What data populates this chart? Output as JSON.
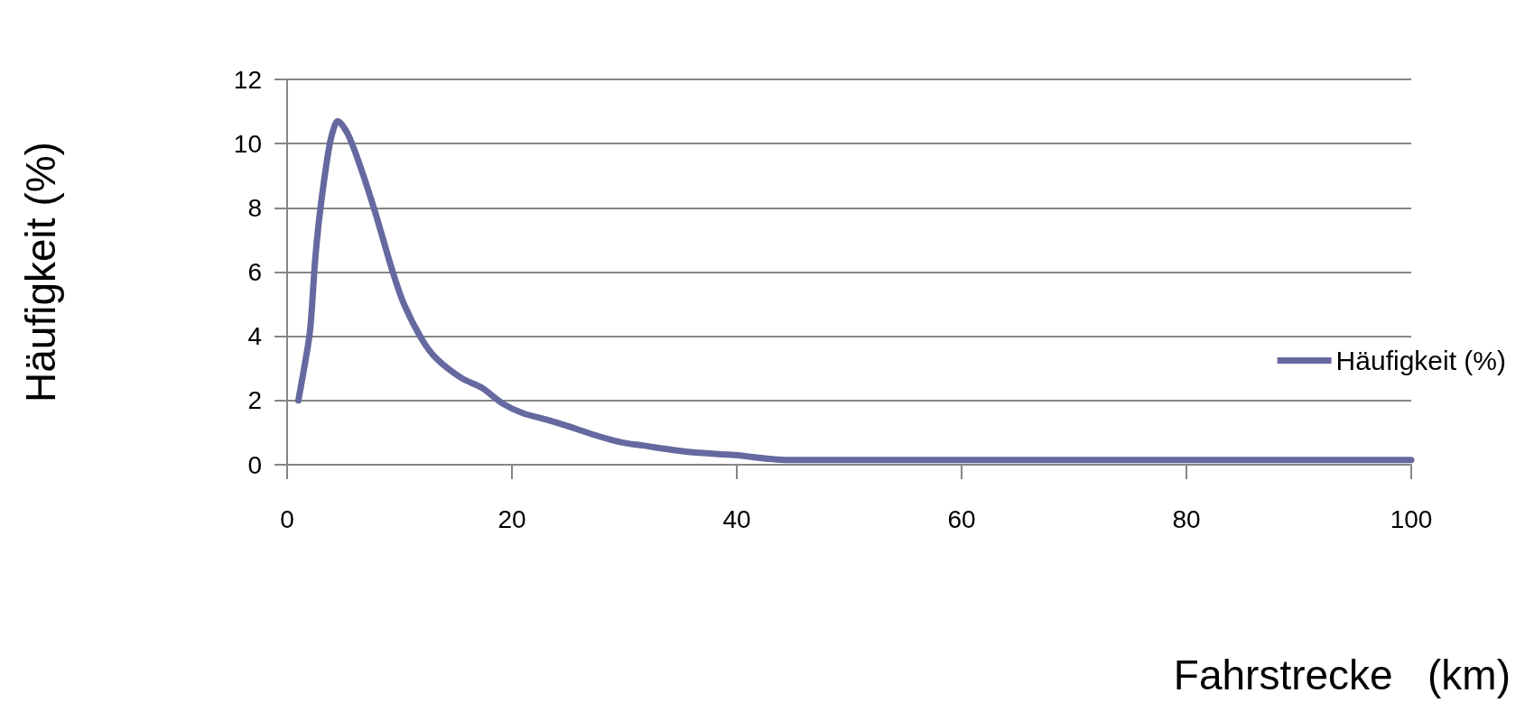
{
  "chart_data": {
    "type": "line",
    "xlabel": "Fahrstrecke   (km)",
    "ylabel": "Häufigkeit (%)",
    "series": [
      {
        "name": "Häufigkeit (%)",
        "color": "#6669a0",
        "x": [
          1,
          1.85,
          2.1,
          2.5,
          2.9,
          3.6,
          4.0,
          4.5,
          5.4,
          6.5,
          7.8,
          9.4,
          10.4,
          12.0,
          13.3,
          15.5,
          17.3,
          19.2,
          21.0,
          23.1,
          25.0,
          27.6,
          29.7,
          31.6,
          35.7,
          39.8,
          44.4,
          50,
          60,
          70,
          80,
          90,
          100
        ],
        "values": [
          2.0,
          3.7,
          4.4,
          6.4,
          7.8,
          9.6,
          10.3,
          10.7,
          10.3,
          9.3,
          7.9,
          6.0,
          5.0,
          3.9,
          3.3,
          2.7,
          2.4,
          1.9,
          1.6,
          1.4,
          1.2,
          0.9,
          0.7,
          0.6,
          0.4,
          0.3,
          0.15,
          0.15,
          0.15,
          0.15,
          0.15,
          0.15,
          0.15
        ]
      }
    ],
    "xlim": [
      0,
      100
    ],
    "xticks": [
      0,
      20,
      40,
      60,
      80,
      100
    ],
    "ylim": [
      0,
      12
    ],
    "yticks": [
      0,
      2,
      4,
      6,
      8,
      10,
      12
    ],
    "grid": "y",
    "legend": "right",
    "marker": "none",
    "line_style": "solid"
  }
}
